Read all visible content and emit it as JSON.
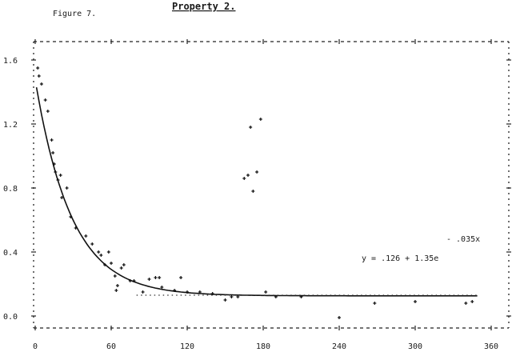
{
  "figure_label": "Figure 7.",
  "title": "Property 2.",
  "equation": {
    "exponent": "- .035x",
    "main": "y = .126 + 1.35e"
  },
  "chart_data": {
    "type": "scatter",
    "title": "Property 2.",
    "xlabel": "",
    "ylabel": "",
    "xlim": [
      0,
      360
    ],
    "ylim": [
      0.0,
      1.6
    ],
    "x_ticks": [
      "0",
      "60",
      "120",
      "180",
      "240",
      "300",
      "360"
    ],
    "y_ticks": [
      "0.0",
      "0.4",
      "0.8",
      "1.2",
      "1.6"
    ],
    "grid": false,
    "fit": {
      "a": 0.126,
      "b": 1.35,
      "k": 0.035
    },
    "points": [
      [
        2,
        1.55
      ],
      [
        3,
        1.5
      ],
      [
        5,
        1.45
      ],
      [
        8,
        1.35
      ],
      [
        10,
        1.28
      ],
      [
        13,
        1.1
      ],
      [
        14,
        1.02
      ],
      [
        15,
        0.95
      ],
      [
        16,
        0.9
      ],
      [
        18,
        0.85
      ],
      [
        20,
        0.88
      ],
      [
        21,
        0.74
      ],
      [
        25,
        0.8
      ],
      [
        28,
        0.62
      ],
      [
        32,
        0.55
      ],
      [
        40,
        0.5
      ],
      [
        45,
        0.45
      ],
      [
        50,
        0.4
      ],
      [
        52,
        0.38
      ],
      [
        55,
        0.32
      ],
      [
        58,
        0.4
      ],
      [
        60,
        0.33
      ],
      [
        63,
        0.25
      ],
      [
        64,
        0.16
      ],
      [
        65,
        0.19
      ],
      [
        68,
        0.3
      ],
      [
        70,
        0.32
      ],
      [
        75,
        0.22
      ],
      [
        78,
        0.22
      ],
      [
        85,
        0.15
      ],
      [
        90,
        0.23
      ],
      [
        95,
        0.24
      ],
      [
        98,
        0.24
      ],
      [
        100,
        0.18
      ],
      [
        110,
        0.16
      ],
      [
        115,
        0.24
      ],
      [
        120,
        0.15
      ],
      [
        130,
        0.15
      ],
      [
        140,
        0.14
      ],
      [
        150,
        0.1
      ],
      [
        155,
        0.12
      ],
      [
        160,
        0.12
      ],
      [
        165,
        0.86
      ],
      [
        168,
        0.88
      ],
      [
        170,
        1.18
      ],
      [
        172,
        0.78
      ],
      [
        175,
        0.9
      ],
      [
        178,
        1.23
      ],
      [
        182,
        0.15
      ],
      [
        190,
        0.12
      ],
      [
        210,
        0.12
      ],
      [
        240,
        -0.01
      ],
      [
        268,
        0.08
      ],
      [
        300,
        0.09
      ],
      [
        340,
        0.08
      ],
      [
        345,
        0.09
      ]
    ],
    "dotted_reference": {
      "y": 0.13,
      "from_x": 80,
      "to_x": 350
    }
  }
}
